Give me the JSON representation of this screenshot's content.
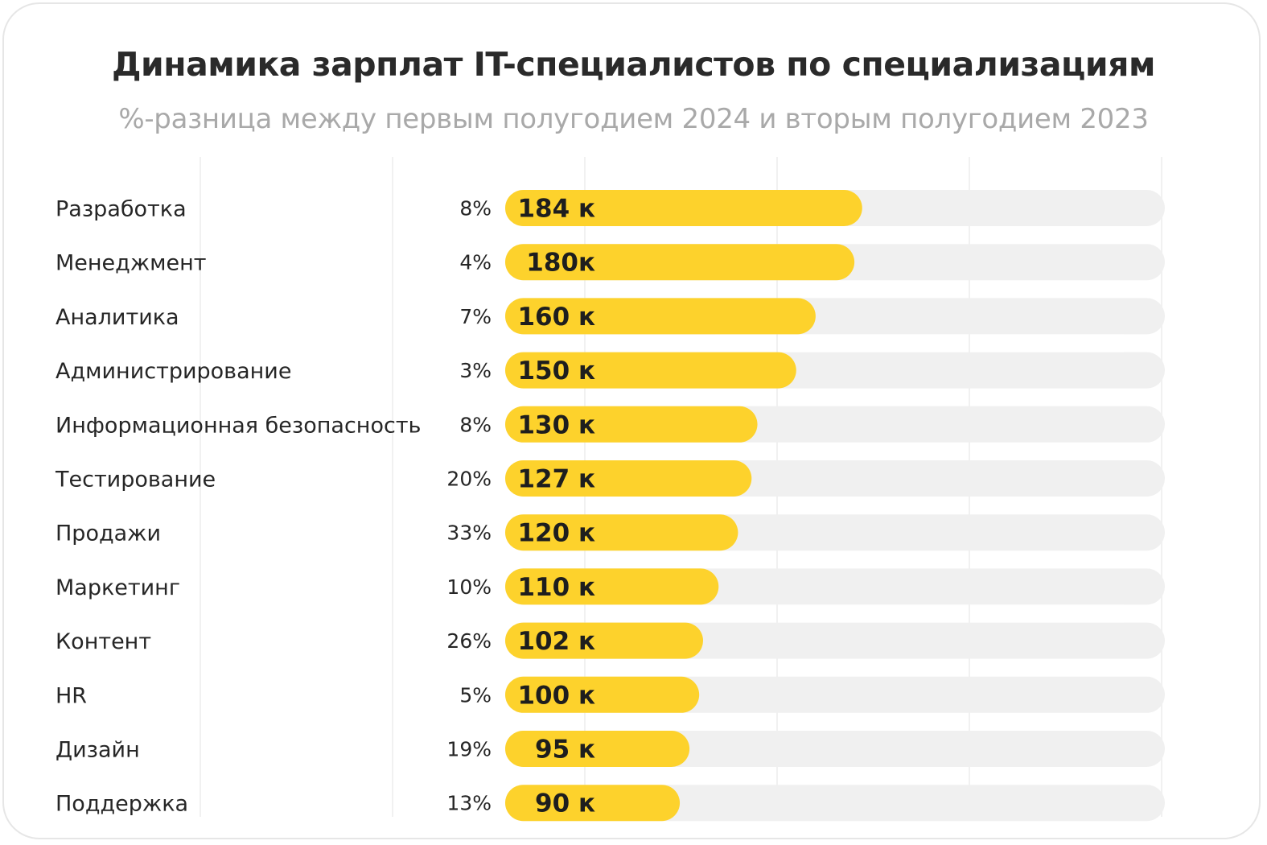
{
  "colors": {
    "bar": "#fdd22c",
    "track": "#f0f0f0",
    "text": "#262626",
    "subtitle": "#a9a9a9"
  },
  "chart_data": {
    "type": "bar",
    "orientation": "horizontal",
    "title": "Динамика зарплат IT-специалистов по специализациям",
    "subtitle": "%-разница между первым полугодием 2024 и вторым полугодием 2023",
    "xlim": [
      0,
      340
    ],
    "grid": true,
    "categories": [
      "Разработка",
      "Менеджмент",
      "Аналитика",
      "Администрирование",
      "Информационная безопасность",
      "Тестирование",
      "Продажи",
      "Маркетинг",
      "Контент",
      "HR",
      "Дизайн",
      "Поддержка"
    ],
    "values": [
      184,
      180,
      160,
      150,
      130,
      127,
      120,
      110,
      102,
      100,
      95,
      90
    ],
    "value_labels": [
      "184 к",
      "180к",
      "160 к",
      "150 к",
      "130 к",
      "127 к",
      "120 к",
      "110 к",
      "102 к",
      "100 к",
      "95 к",
      "90 к"
    ],
    "change_labels": [
      "8%",
      "4%",
      "7%",
      "3%",
      "8%",
      "20%",
      "33%",
      "10%",
      "26%",
      "5%",
      "19%",
      "13%"
    ]
  }
}
